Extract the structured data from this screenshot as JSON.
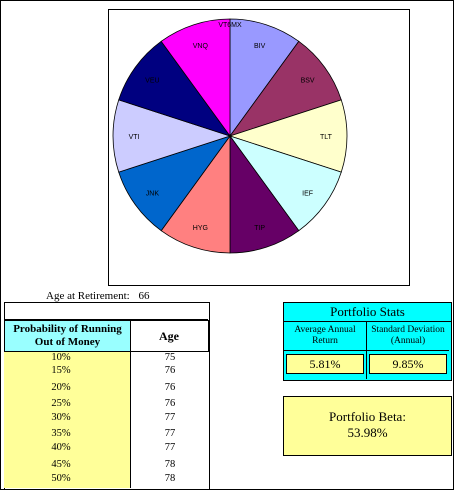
{
  "chart_data": {
    "type": "pie",
    "title": "",
    "slices": [
      {
        "label": "BIV",
        "value": 11,
        "color": "#9999ff"
      },
      {
        "label": "BSV",
        "value": 11,
        "color": "#993366"
      },
      {
        "label": "TLT",
        "value": 11,
        "color": "#ffffcc"
      },
      {
        "label": "IEF",
        "value": 11,
        "color": "#ccffff"
      },
      {
        "label": "TIP",
        "value": 11,
        "color": "#660066"
      },
      {
        "label": "HYG",
        "value": 11,
        "color": "#ff8080"
      },
      {
        "label": "JNK",
        "value": 11,
        "color": "#0066cc"
      },
      {
        "label": "VTI",
        "value": 11,
        "color": "#ccccff"
      },
      {
        "label": "VEU",
        "value": 11,
        "color": "#000080"
      },
      {
        "label": "VNQ",
        "value": 11,
        "color": "#ff00ff"
      }
    ],
    "top_label": "VT6MX"
  },
  "retirement": {
    "label": "Age at Retirement:",
    "value": "66"
  },
  "prob_table": {
    "header_prob": "Probability of Running Out of Money",
    "header_age": "Age",
    "rows": [
      {
        "prob": "10%",
        "age": "75"
      },
      {
        "prob": "15%",
        "age": "76"
      },
      {
        "prob": "20%",
        "age": "76"
      },
      {
        "prob": "25%",
        "age": "76"
      },
      {
        "prob": "30%",
        "age": "77"
      },
      {
        "prob": "35%",
        "age": "77"
      },
      {
        "prob": "40%",
        "age": "77"
      },
      {
        "prob": "45%",
        "age": "78"
      },
      {
        "prob": "50%",
        "age": "78"
      }
    ]
  },
  "stats": {
    "title": "Portfolio Stats",
    "return_label": "Average Annual Return",
    "return_value": "5.81%",
    "stdev_label": "Standard Deviation (Annual)",
    "stdev_value": "9.85%"
  },
  "beta": {
    "label": "Portfolio Beta:",
    "value": "53.98%"
  }
}
